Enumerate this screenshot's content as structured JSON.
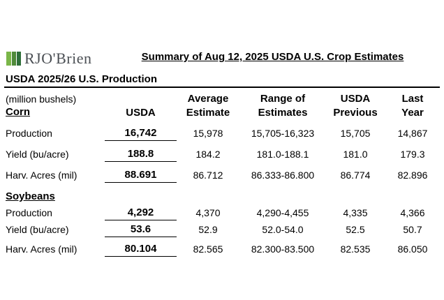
{
  "logo": {
    "text": "RJO'Brien"
  },
  "title": "Summary of Aug 12, 2025 USDA U.S. Crop Estimates",
  "section_title": "USDA 2025/26 U.S. Production",
  "units_note": "(million bushels)",
  "headers": {
    "usda": "USDA",
    "avg": [
      "Average",
      "Estimate"
    ],
    "range": [
      "Range of",
      "Estimates"
    ],
    "prev": [
      "USDA",
      "Previous"
    ],
    "last": [
      "Last",
      "Year"
    ]
  },
  "groups": [
    {
      "name": "Corn",
      "rows": [
        {
          "label": "Production",
          "usda": "16,742",
          "avg": "15,978",
          "range": "15,705-16,323",
          "prev": "15,705",
          "last": "14,867"
        },
        {
          "label": "Yield (bu/acre)",
          "usda": "188.8",
          "avg": "184.2",
          "range": "181.0-188.1",
          "prev": "181.0",
          "last": "179.3"
        },
        {
          "label": "Harv. Acres (mil)",
          "usda": "88.691",
          "avg": "86.712",
          "range": "86.333-86.800",
          "prev": "86.774",
          "last": "82.896"
        }
      ]
    },
    {
      "name": "Soybeans",
      "rows": [
        {
          "label": "Production",
          "usda": "4,292",
          "avg": "4,370",
          "range": "4,290-4,455",
          "prev": "4,335",
          "last": "4,366"
        },
        {
          "label": "Yield (bu/acre)",
          "usda": "53.6",
          "avg": "52.9",
          "range": "52.0-54.0",
          "prev": "52.5",
          "last": "50.7"
        },
        {
          "label": "Harv. Acres (mil)",
          "usda": "80.104",
          "avg": "82.565",
          "range": "82.300-83.500",
          "prev": "82.535",
          "last": "86.050"
        }
      ]
    }
  ]
}
